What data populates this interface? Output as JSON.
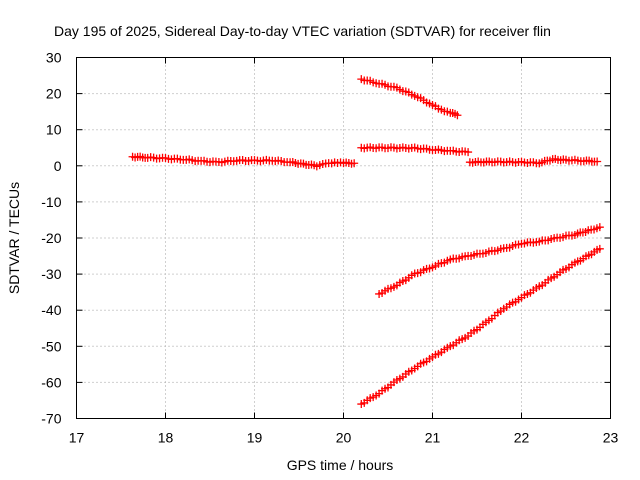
{
  "chart_data": {
    "type": "scatter",
    "title": "Day 195 of 2025, Sidereal Day-to-day VTEC variation (SDTVAR) for receiver flin",
    "xlabel": "GPS time / hours",
    "ylabel": "SDTVAR / TECUs",
    "xlim": [
      17,
      23
    ],
    "ylim": [
      -70,
      30
    ],
    "xticks": [
      17,
      18,
      19,
      20,
      21,
      22,
      23
    ],
    "yticks": [
      30,
      20,
      10,
      0,
      -10,
      -20,
      -30,
      -40,
      -50,
      -60,
      -70
    ],
    "grid": true,
    "marker": "plus",
    "color": "#ff0000",
    "series": [
      {
        "x": [
          17.63,
          17.8,
          18.0,
          18.2,
          18.4,
          18.6,
          18.8,
          19.0,
          19.2,
          19.4,
          19.55,
          19.7,
          19.8,
          19.9,
          20.0,
          20.12
        ],
        "y": [
          2.5,
          2.3,
          2.0,
          1.8,
          1.3,
          1.0,
          1.5,
          1.4,
          1.5,
          1.0,
          0.5,
          0.0,
          0.5,
          1.0,
          0.8,
          0.7
        ]
      },
      {
        "x": [
          20.2,
          20.4,
          20.6,
          20.8,
          21.0,
          21.1,
          21.2,
          21.28
        ],
        "y": [
          24.0,
          22.8,
          21.5,
          19.5,
          16.8,
          15.5,
          14.8,
          14.0
        ]
      },
      {
        "x": [
          20.2,
          20.5,
          20.8,
          21.0,
          21.2,
          21.4
        ],
        "y": [
          5.0,
          5.0,
          4.9,
          4.5,
          4.1,
          3.8
        ]
      },
      {
        "x": [
          21.42,
          21.7,
          22.0,
          22.2,
          22.35,
          22.5,
          22.7,
          22.85
        ],
        "y": [
          1.0,
          1.1,
          1.0,
          0.8,
          1.8,
          1.6,
          1.4,
          1.2
        ]
      },
      {
        "x": [
          20.4,
          20.6,
          20.8,
          21.0,
          21.2,
          21.4,
          21.6,
          21.8,
          22.0,
          22.2,
          22.4,
          22.6,
          22.75,
          22.88
        ],
        "y": [
          -35.5,
          -33.0,
          -30.0,
          -28.0,
          -26.0,
          -25.0,
          -24.0,
          -23.0,
          -21.5,
          -21.0,
          -20.0,
          -19.0,
          -18.0,
          -17.0
        ]
      },
      {
        "x": [
          20.2,
          20.4,
          20.6,
          20.8,
          21.0,
          21.2,
          21.4,
          21.6,
          21.8,
          22.0,
          22.2,
          22.4,
          22.6,
          22.88
        ],
        "y": [
          -66.0,
          -63.0,
          -59.5,
          -56.0,
          -53.0,
          -50.0,
          -47.0,
          -43.5,
          -39.5,
          -36.5,
          -33.5,
          -30.0,
          -27.0,
          -23.0
        ]
      }
    ]
  }
}
